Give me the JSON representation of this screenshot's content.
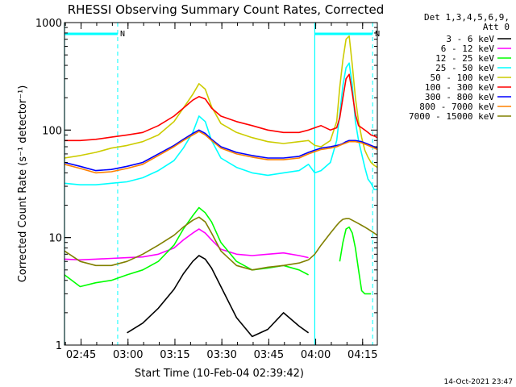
{
  "chart_data": {
    "type": "line",
    "title": "RHESSI Observing Summary Count Rates, Corrected",
    "xlabel": "Start Time (10-Feb-04 02:39:42)",
    "ylabel": "Corrected Count Rate (s⁻¹ detector⁻¹)",
    "yscale": "log",
    "ylim": [
      1,
      1000
    ],
    "xlim_minutes": [
      0,
      100
    ],
    "x_ticks": [
      {
        "minute": 5.3,
        "label": "02:45"
      },
      {
        "minute": 20.3,
        "label": "03:00"
      },
      {
        "minute": 35.3,
        "label": "03:15"
      },
      {
        "minute": 50.3,
        "label": "03:30"
      },
      {
        "minute": 65.3,
        "label": "03:45"
      },
      {
        "minute": 80.3,
        "label": "04:00"
      },
      {
        "minute": 95.3,
        "label": "04:15"
      }
    ],
    "y_ticks": [
      {
        "value": 1,
        "label": "1"
      },
      {
        "value": 10,
        "label": "10"
      },
      {
        "value": 100,
        "label": "100"
      },
      {
        "value": 1000,
        "label": "1000"
      }
    ],
    "legend_header": [
      "Det 1,3,4,5,6,9,",
      "Att 0"
    ],
    "legend_position": "top-right, outside plot",
    "grid": false,
    "night_markers": {
      "color": "#00ffff",
      "bars": [
        {
          "from": 0,
          "to": 17,
          "label": "N"
        },
        {
          "from": 80,
          "to": 98.5,
          "label": "N"
        }
      ],
      "solid_lines": [
        0,
        80
      ],
      "dashed_lines": [
        17,
        98.5
      ]
    },
    "x_minutes": [
      0,
      5,
      10,
      15,
      20,
      25,
      30,
      35,
      38,
      41,
      43,
      45,
      47,
      50,
      55,
      60,
      65,
      70,
      75,
      78,
      80,
      82,
      85,
      87,
      88,
      89,
      90,
      91,
      92,
      93,
      94,
      95,
      96,
      97,
      98,
      99,
      100
    ],
    "series": [
      {
        "name": "3 - 6 keV",
        "color": "#000000",
        "values": [
          null,
          null,
          null,
          null,
          1.3,
          1.6,
          2.2,
          3.3,
          4.6,
          6.0,
          6.8,
          6.3,
          5.2,
          3.5,
          1.8,
          1.2,
          1.4,
          2.0,
          1.5,
          1.3,
          null,
          null,
          null,
          null,
          null,
          null,
          null,
          null,
          null,
          null,
          null,
          null,
          null,
          null,
          null,
          null,
          null
        ]
      },
      {
        "name": "6 - 12 keV",
        "color": "#ff00ff",
        "values": [
          6.3,
          6.2,
          6.3,
          6.4,
          6.5,
          6.6,
          7.0,
          8.0,
          9.5,
          11.0,
          12.0,
          11.0,
          9.5,
          7.8,
          7.0,
          6.8,
          7.0,
          7.2,
          6.8,
          6.5,
          null,
          null,
          null,
          null,
          null,
          null,
          null,
          null,
          null,
          null,
          null,
          null,
          null,
          null,
          null,
          null,
          null
        ]
      },
      {
        "name": "12 - 25 keV",
        "color": "#00ff00",
        "values": [
          4.5,
          3.5,
          3.8,
          4.0,
          4.5,
          5.0,
          6.0,
          8.5,
          12.0,
          16.0,
          19.0,
          17.0,
          14.0,
          9.0,
          6.0,
          5.0,
          5.2,
          5.5,
          5.0,
          4.5,
          null,
          null,
          null,
          null,
          6.0,
          9.0,
          12.0,
          12.5,
          11.0,
          8.0,
          5.0,
          3.2,
          3.0,
          3.0,
          3.0,
          null,
          null
        ]
      },
      {
        "name": "25 - 50 keV",
        "color": "#00ffff",
        "values": [
          32,
          31,
          31,
          32,
          33,
          36,
          42,
          52,
          68,
          95,
          135,
          120,
          80,
          55,
          45,
          40,
          38,
          40,
          42,
          48,
          40,
          42,
          50,
          80,
          140,
          260,
          380,
          420,
          260,
          120,
          80,
          60,
          45,
          35,
          32,
          28,
          28
        ]
      },
      {
        "name": "50 - 100 keV",
        "color": "#cccc00",
        "values": [
          55,
          58,
          62,
          68,
          72,
          78,
          90,
          120,
          160,
          215,
          270,
          240,
          165,
          115,
          95,
          85,
          78,
          75,
          78,
          80,
          72,
          70,
          80,
          120,
          250,
          450,
          700,
          750,
          400,
          200,
          120,
          85,
          65,
          56,
          50,
          47,
          45
        ]
      },
      {
        "name": "100 - 300 keV",
        "color": "#ff0000",
        "values": [
          80,
          80,
          82,
          86,
          90,
          95,
          110,
          135,
          160,
          190,
          205,
          195,
          160,
          135,
          120,
          110,
          100,
          95,
          95,
          100,
          105,
          110,
          100,
          105,
          130,
          200,
          300,
          330,
          220,
          140,
          110,
          105,
          100,
          95,
          90,
          88,
          85
        ]
      },
      {
        "name": "300 - 800 keV",
        "color": "#0000ff",
        "values": [
          50,
          46,
          42,
          43,
          46,
          50,
          60,
          72,
          82,
          93,
          100,
          93,
          82,
          70,
          62,
          58,
          55,
          55,
          57,
          62,
          65,
          68,
          70,
          72,
          73,
          75,
          78,
          80,
          80,
          80,
          79,
          78,
          76,
          74,
          72,
          70,
          68
        ]
      },
      {
        "name": "800 - 7000 keV",
        "color": "#ff8000",
        "values": [
          48,
          44,
          40,
          41,
          44,
          48,
          58,
          70,
          80,
          90,
          97,
          90,
          80,
          68,
          60,
          56,
          53,
          53,
          55,
          60,
          63,
          66,
          68,
          70,
          72,
          74,
          76,
          78,
          78,
          78,
          77,
          76,
          74,
          72,
          70,
          68,
          66
        ]
      },
      {
        "name": "7000 - 15000 keV",
        "color": "#808000",
        "values": [
          7.5,
          6.0,
          5.5,
          5.5,
          6.0,
          7.0,
          8.5,
          10.5,
          12.5,
          14.5,
          15.5,
          14.0,
          11.0,
          7.5,
          5.5,
          5.0,
          5.3,
          5.5,
          5.8,
          6.2,
          7.0,
          8.5,
          11.0,
          13.0,
          14.0,
          14.8,
          15.0,
          15.0,
          14.5,
          14.0,
          13.5,
          13.0,
          12.5,
          12.0,
          11.5,
          11.0,
          10.5
        ]
      }
    ]
  },
  "footer": {
    "timestamp": "14-Oct-2021 23:47"
  }
}
